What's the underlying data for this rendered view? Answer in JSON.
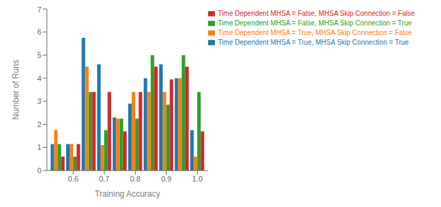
{
  "chart_data": {
    "type": "bar",
    "xlabel": "Training Accuracy",
    "ylabel": "Number of Runs",
    "x": [
      0.55,
      0.6,
      0.65,
      0.7,
      0.75,
      0.8,
      0.85,
      0.9,
      0.95,
      1.0
    ],
    "series": [
      {
        "name": "Time Dependent MHSA = True, MHSA Skip Connection = True",
        "color": "#1f77b4",
        "values": [
          1.15,
          1.15,
          5.75,
          4.6,
          2.3,
          2.9,
          4.0,
          4.6,
          4.0,
          1.75
        ]
      },
      {
        "name": "Time Dependent MHSA = True, MHSA Skip Connection = False",
        "color": "#ff7f0e",
        "values": [
          1.75,
          1.15,
          4.5,
          1.1,
          2.25,
          3.4,
          3.4,
          3.4,
          4.0,
          0.6
        ]
      },
      {
        "name": "Time Dependent MHSA = False, MHSA Skip Connection = True",
        "color": "#2ca02c",
        "values": [
          1.15,
          0.6,
          3.4,
          1.75,
          2.25,
          2.25,
          5.0,
          2.85,
          5.0,
          3.4
        ]
      },
      {
        "name": "Time Dependent MHSA = False, MHSA Skip Connection = False",
        "color": "#d62728",
        "values": [
          0.6,
          1.15,
          3.4,
          3.4,
          1.7,
          3.4,
          4.5,
          3.95,
          4.5,
          1.7
        ]
      }
    ],
    "xlim": [
      0.515,
      1.035
    ],
    "xticks": [
      0.6,
      0.7,
      0.8,
      0.9,
      {
        "value": 1,
        "label": "1.0"
      }
    ],
    "ylim": [
      0,
      7
    ],
    "yticks": [
      0,
      1,
      2,
      3,
      4,
      5,
      6,
      7
    ],
    "grid": false,
    "legend": "upper right"
  }
}
